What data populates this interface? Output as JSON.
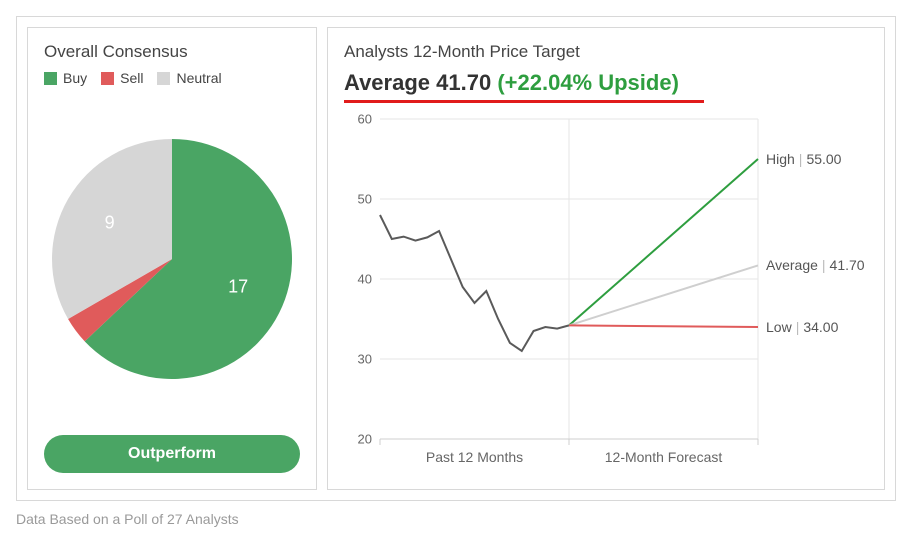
{
  "consensus": {
    "title": "Overall Consensus",
    "legend": {
      "buy": {
        "label": "Buy",
        "color": "#4aa564"
      },
      "sell": {
        "label": "Sell",
        "color": "#e05b5b"
      },
      "neutral": {
        "label": "Neutral",
        "color": "#d6d6d6"
      }
    },
    "pie": {
      "type": "pie",
      "radius": 120,
      "background_color": "#ffffff",
      "start_angle_deg": -90,
      "slices": [
        {
          "key": "buy",
          "value": 17,
          "color": "#4aa564",
          "label": "17",
          "label_color": "#ffffff"
        },
        {
          "key": "sell",
          "value": 1,
          "color": "#e05b5b",
          "label": "",
          "label_color": "#ffffff"
        },
        {
          "key": "neutral",
          "value": 9,
          "color": "#d6d6d6",
          "label": "9",
          "label_color": "#ffffff"
        }
      ]
    },
    "pill": {
      "label": "Outperform",
      "bg_color": "#4aa564",
      "text_color": "#ffffff"
    }
  },
  "price_target": {
    "title": "Analysts 12-Month Price Target",
    "average_label_prefix": "Average",
    "average_value": "41.70",
    "upside_text": "(+22.04% Upside)",
    "upside_color": "#2e9e3f",
    "underline_color": "#e11b1b",
    "chart": {
      "type": "line",
      "ylim": [
        20,
        60
      ],
      "yticks": [
        20,
        30,
        40,
        50,
        60
      ],
      "grid_color": "#e6e6e6",
      "axis_color": "#cfcfcf",
      "tick_font_size": 13,
      "tick_color": "#666666",
      "background_color": "#ffffff",
      "x_labels": {
        "left": "Past 12 Months",
        "right": "12-Month Forecast",
        "color": "#666666",
        "font_size": 14
      },
      "history": {
        "color": "#5a5a5a",
        "width": 2,
        "points": [
          48,
          45,
          45.3,
          44.8,
          45.2,
          46,
          42.5,
          39,
          37,
          38.5,
          35,
          32,
          31,
          33.5,
          34,
          33.8,
          34.2
        ]
      },
      "forecast_start": 34.2,
      "forecasts": [
        {
          "key": "high",
          "label": "High",
          "value": 55.0,
          "value_text": "55.00",
          "color": "#2e9e3f",
          "width": 2
        },
        {
          "key": "average",
          "label": "Average",
          "value": 41.7,
          "value_text": "41.70",
          "color": "#cfcfcf",
          "width": 2
        },
        {
          "key": "low",
          "label": "Low",
          "value": 34.0,
          "value_text": "34.00",
          "color": "#e05b5b",
          "width": 2
        }
      ]
    }
  },
  "footnote": "Data Based on a Poll of 27 Analysts"
}
